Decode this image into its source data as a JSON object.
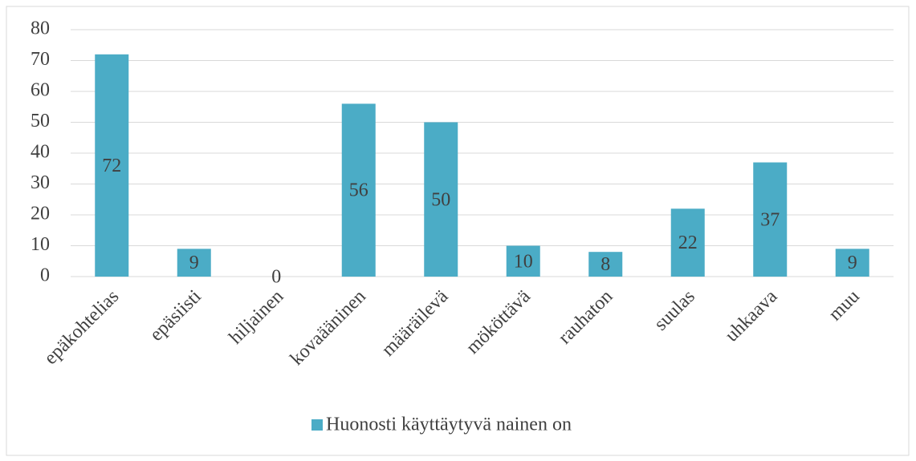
{
  "chart_data": {
    "type": "bar",
    "categories": [
      "epäkohtelias",
      "epäsiisti",
      "hiljainen",
      "kovaääninen",
      "määräilevä",
      "mököttävä",
      "rauhaton",
      "suulas",
      "uhkaava",
      "muu"
    ],
    "series": [
      {
        "name": "Huonosti käyttäytyvä nainen on",
        "color": "#4bacc6",
        "values": [
          72,
          9,
          0,
          56,
          50,
          10,
          8,
          22,
          37,
          9
        ]
      }
    ],
    "ylim": [
      0,
      80
    ],
    "yticks": [
      0,
      10,
      20,
      30,
      40,
      50,
      60,
      70,
      80
    ],
    "grid": true,
    "legend": "bottom"
  }
}
